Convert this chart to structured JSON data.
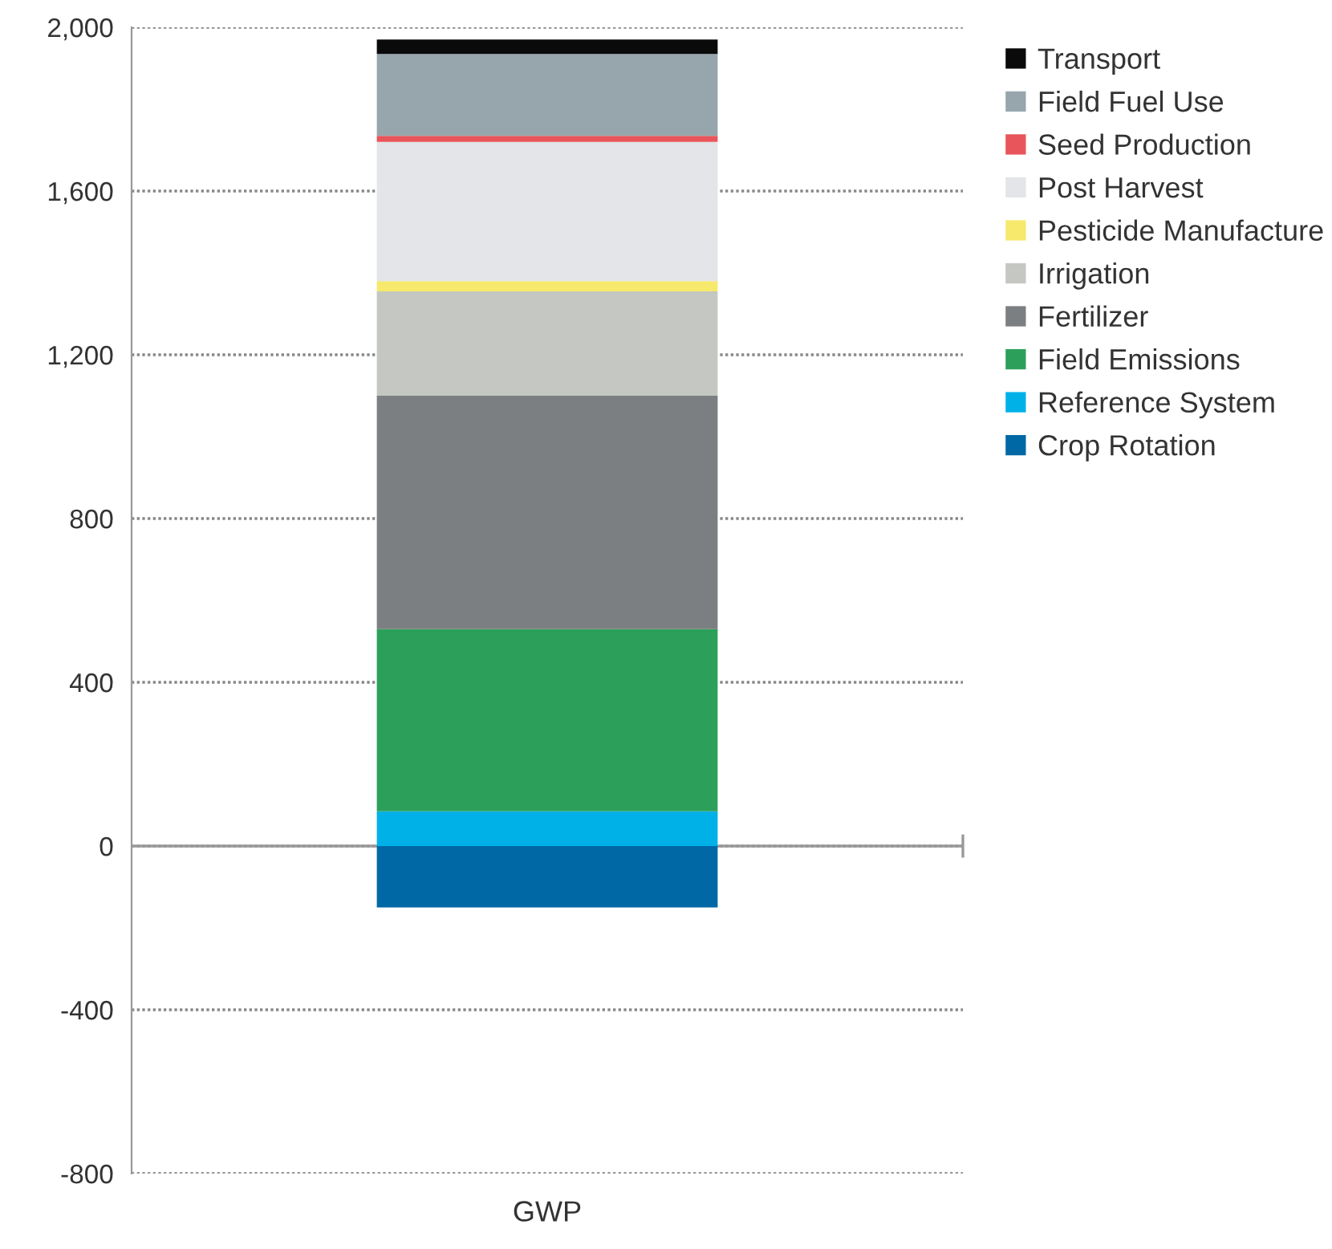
{
  "chart_data": {
    "type": "bar",
    "stacked": true,
    "categories": [
      "GWP"
    ],
    "series": [
      {
        "name": "Crop Rotation",
        "color": "#0068a5",
        "values": [
          -150
        ]
      },
      {
        "name": "Reference System",
        "color": "#00b1e8",
        "values": [
          85
        ]
      },
      {
        "name": "Field Emissions",
        "color": "#2ca05a",
        "values": [
          445
        ]
      },
      {
        "name": "Fertilizer",
        "color": "#7c7f82",
        "values": [
          570
        ]
      },
      {
        "name": "Irrigation",
        "color": "#c4c7c2",
        "values": [
          255
        ]
      },
      {
        "name": "Pesticide Manufacture",
        "color": "#f7e96b",
        "values": [
          25
        ]
      },
      {
        "name": "Post Harvest",
        "color": "#e3e5e8",
        "values": [
          340
        ]
      },
      {
        "name": "Seed Production",
        "color": "#e8555a",
        "values": [
          15
        ]
      },
      {
        "name": "Field Fuel Use",
        "color": "#97a6ad",
        "values": [
          200
        ]
      },
      {
        "name": "Transport",
        "color": "#0a0a0a",
        "values": [
          35
        ]
      }
    ],
    "ylim": [
      -800,
      2000
    ],
    "yticks": [
      {
        "value": -800,
        "label": "-800"
      },
      {
        "value": -400,
        "label": "-400"
      },
      0,
      400,
      800,
      {
        "value": 1200,
        "label": "1,200"
      },
      {
        "value": 1600,
        "label": "1,600"
      },
      {
        "value": 2000,
        "label": "2,000"
      }
    ],
    "grid": "y",
    "legend": "top right"
  }
}
